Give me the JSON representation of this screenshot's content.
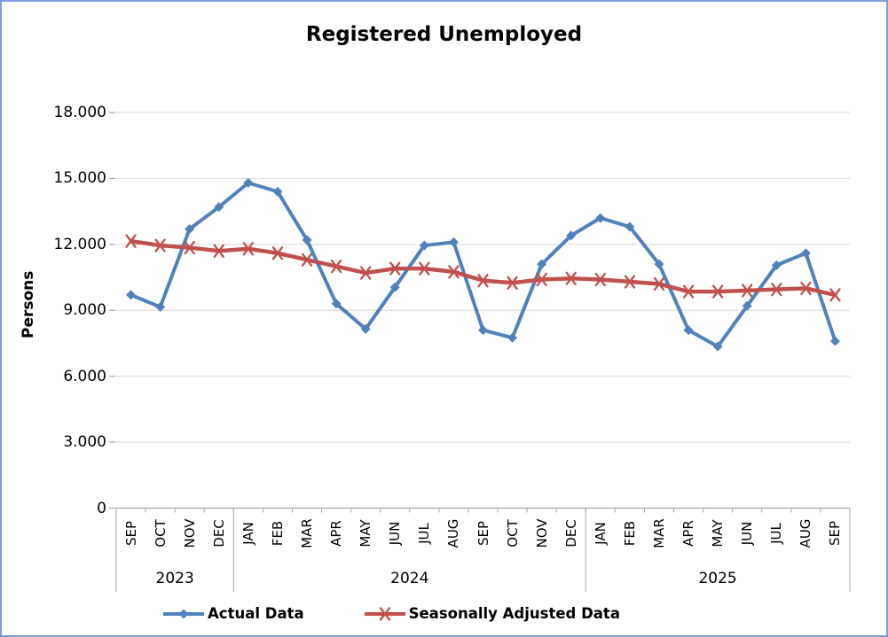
{
  "colors": {
    "background": "#FFFFFF",
    "border": "#7BA0D9",
    "gridline": "#D9D9D9",
    "axis": "#A6A6A6",
    "actual_series": "#4F81BD",
    "seasonal_series": "#C0504D",
    "text": "#000000"
  },
  "chart_data": {
    "type": "line",
    "title": "Registered Unemployed",
    "xlabel": "",
    "ylabel": "Persons",
    "ylim": [
      0,
      18000
    ],
    "y_tick_labels": [
      "0",
      "3.000",
      "6.000",
      "9.000",
      "12.000",
      "15.000",
      "18.000"
    ],
    "grid": true,
    "legend_position": "bottom",
    "categories": [
      "SEP",
      "OCT",
      "NOV",
      "DEC",
      "JAN",
      "FEB",
      "MAR",
      "APR",
      "MAY",
      "JUN",
      "JUL",
      "AUG",
      "SEP",
      "OCT",
      "NOV",
      "DEC",
      "JAN",
      "FEB",
      "MAR",
      "APR",
      "MAY",
      "JUN",
      "JUL",
      "AUG",
      "SEP"
    ],
    "year_groups": [
      {
        "label": "2023",
        "months": 4
      },
      {
        "label": "2024",
        "months": 12
      },
      {
        "label": "2025",
        "months": 9
      }
    ],
    "series": [
      {
        "name": "Actual Data",
        "color": "#4F81BD",
        "marker": "diamond",
        "values": [
          9700,
          9150,
          12700,
          13700,
          14800,
          14400,
          12200,
          9300,
          8150,
          10050,
          11950,
          12100,
          8100,
          7750,
          11100,
          12400,
          13200,
          12800,
          11100,
          8100,
          7350,
          9200,
          11050,
          11600,
          7600
        ]
      },
      {
        "name": "Seasonally Adjusted Data",
        "color": "#C0504D",
        "marker": "x",
        "values": [
          12150,
          11950,
          11850,
          11700,
          11800,
          11600,
          11300,
          11000,
          10700,
          10900,
          10900,
          10750,
          10350,
          10250,
          10400,
          10450,
          10400,
          10300,
          10200,
          9850,
          9850,
          9900,
          9950,
          10000,
          9700
        ]
      }
    ]
  }
}
